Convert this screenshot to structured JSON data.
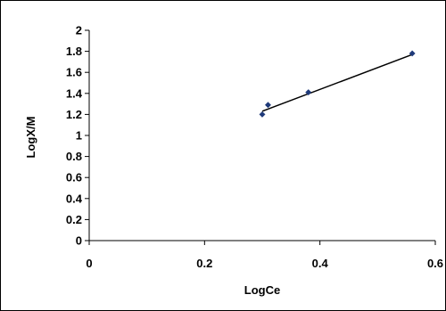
{
  "chart_data": {
    "type": "scatter",
    "title": "",
    "xlabel": "LogCe",
    "ylabel": "LogX/M",
    "xlim": [
      0,
      0.6
    ],
    "ylim": [
      0,
      2
    ],
    "x_ticks": [
      "0",
      "0.2",
      "0.4",
      "0.6"
    ],
    "y_ticks": [
      "0",
      "0.2",
      "0.4",
      "0.6",
      "0.8",
      "1",
      "1.2",
      "1.4",
      "1.6",
      "1.8",
      "2"
    ],
    "grid": false,
    "legend": "none",
    "marker_color": "#1f3a7a",
    "line_color": "#000000",
    "points": [
      {
        "x": 0.3,
        "y": 1.2
      },
      {
        "x": 0.31,
        "y": 1.29
      },
      {
        "x": 0.38,
        "y": 1.41
      },
      {
        "x": 0.56,
        "y": 1.78
      }
    ],
    "trendline": {
      "x": [
        0.3,
        0.56
      ],
      "y": [
        1.23,
        1.77
      ]
    }
  }
}
